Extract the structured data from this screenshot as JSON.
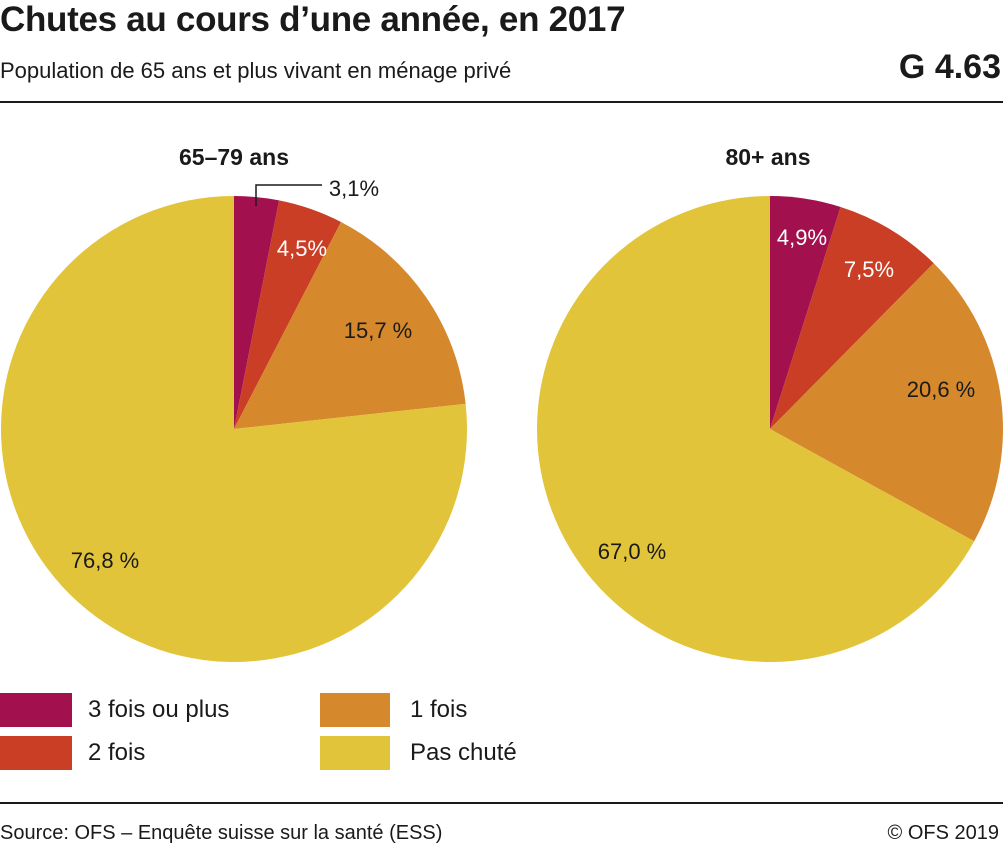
{
  "header": {
    "title": "Chutes au cours d’une année, en 2017",
    "subtitle": "Population de 65 ans et plus vivant en ménage privé",
    "code": "G 4.63"
  },
  "chart_data": [
    {
      "type": "pie",
      "title": "65–79 ans",
      "categories": [
        "3 fois ou plus",
        "2 fois",
        "1 fois",
        "Pas chuté"
      ],
      "values": [
        3.1,
        4.5,
        15.7,
        76.8
      ],
      "labels": [
        "3,1%",
        "4,5%",
        "15,7 %",
        "76,8 %"
      ],
      "colors": [
        "#a3104e",
        "#c93e25",
        "#d6892c",
        "#e2c43a"
      ]
    },
    {
      "type": "pie",
      "title": "80+ ans",
      "categories": [
        "3 fois ou plus",
        "2 fois",
        "1 fois",
        "Pas chuté"
      ],
      "values": [
        4.9,
        7.5,
        20.6,
        67.0
      ],
      "labels": [
        "4,9%",
        "7,5%",
        "20,6 %",
        "67,0 %"
      ],
      "colors": [
        "#a3104e",
        "#c93e25",
        "#d6892c",
        "#e2c43a"
      ]
    }
  ],
  "legend": [
    {
      "label": "3 fois ou plus",
      "color": "#a3104e"
    },
    {
      "label": "2 fois",
      "color": "#c93e25"
    },
    {
      "label": "1 fois",
      "color": "#d6892c"
    },
    {
      "label": "Pas chuté",
      "color": "#e2c43a"
    }
  ],
  "footer": {
    "source": "Source: OFS – Enquête suisse sur la santé (ESS)",
    "copyright": "© OFS 2019"
  }
}
